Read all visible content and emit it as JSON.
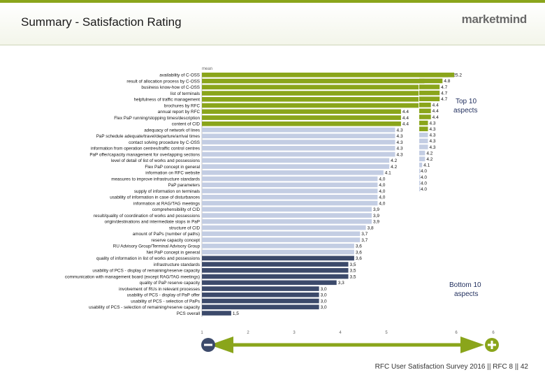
{
  "header": {
    "title": "Summary - Satisfaction Rating",
    "brand": "marketmind"
  },
  "footer": {
    "text": "RFC User Satisfaction Survey 2016 || RFC 8 || 42"
  },
  "chart_data": {
    "type": "bar",
    "orientation": "horizontal",
    "title": "Summary - Satisfaction Rating",
    "series_label": "mean",
    "xlim": [
      1,
      6
    ],
    "xticks": [
      "1",
      "2",
      "3",
      "4",
      "5",
      "6",
      "6"
    ],
    "categories": [
      "availability of C-OSS",
      "result of allocation process by C-OSS",
      "business know-how of C-OSS",
      "list of terminals",
      "helpfulness of traffic management",
      "brochures by RFC",
      "annual report by RFC",
      "Flex PaP running/stopping times/description",
      "content of CID",
      "adequacy of network of lines",
      "PaP schedule adequate/travel/departure/arrival times",
      "contact solving procedure by C-OSS",
      "information from operation centres/traffic control centres",
      "PaP offer/capacity management for overlapping sections",
      "level of detail of list of works and possessions",
      "Flex PaP concept in general",
      "information on RFC website",
      "measures to improve infrastructure standards",
      "PaP parameters",
      "supply of information on terminals",
      "usability of information in case of disturbances",
      "information at RAG/TAG meetings",
      "comprehensibility of CID",
      "result/quality of coordination of works and possessions",
      "origin/destinations and intermediate stops in PaP",
      "structure of CID",
      "amount of PaPs (number of paths)",
      "reserve capacity concept",
      "RU Advisory Group/Terminal Advisory Group",
      "Net PaP concept in general",
      "quality of information in list of works and possessions",
      "infrastructure standards",
      "usability of PCS - display of remaining/reserve capacity",
      "communication with management board (except RAG/TAG meetings)",
      "quality of PaP reserve capacity",
      "involvement of RUs in relevant processes",
      "usability of PCS - display of PaP offer",
      "usability of PCS - selection of PaPs",
      "usability of PCS - selection of remaining/reserve capacity",
      "PCS overall"
    ],
    "values": [
      5.2,
      4.8,
      4.7,
      4.7,
      4.7,
      4.7,
      4.4,
      4.4,
      4.4,
      4.3,
      4.3,
      4.3,
      4.3,
      4.3,
      4.2,
      4.2,
      4.1,
      4.0,
      4.0,
      4.0,
      4.0,
      4.0,
      3.9,
      3.9,
      3.9,
      3.8,
      3.7,
      3.7,
      3.6,
      3.6,
      3.6,
      3.5,
      3.5,
      3.5,
      3.3,
      3.0,
      3.0,
      3.0,
      3.0,
      1.5
    ],
    "value_labels": [
      "5.2",
      "4.8",
      "4.7",
      "4.7",
      "4.7",
      "4.7",
      "4.4",
      "4.4",
      "4.4",
      "4.3",
      "4.3",
      "4.3",
      "4.3",
      "4.3",
      "4.2",
      "4.2",
      "4.1",
      "4,0",
      "4,0",
      "4,0",
      "4,0",
      "4,0",
      "3,9",
      "3,9",
      "3,9",
      "3,8",
      "3,7",
      "3,7",
      "3,6",
      "3,6",
      "3,6",
      "3,5",
      "3,5",
      "3,5",
      "3,3",
      "3,0",
      "3,0",
      "3,0",
      "3,0",
      "1,5"
    ],
    "groups": [
      "top",
      "top",
      "top",
      "top",
      "top",
      "top",
      "top",
      "top",
      "top",
      "mid",
      "mid",
      "mid",
      "mid",
      "mid",
      "mid",
      "mid",
      "mid",
      "mid",
      "mid",
      "mid",
      "mid",
      "mid",
      "mid",
      "mid",
      "mid",
      "mid",
      "mid",
      "mid",
      "mid",
      "mid",
      "bottom",
      "bottom",
      "bottom",
      "bottom",
      "bottom",
      "bottom",
      "bottom",
      "bottom",
      "bottom",
      "bottom"
    ],
    "mini_values": [
      5.2,
      4.8,
      4.7,
      4.7,
      4.7,
      4.4,
      4.4,
      4.4,
      4.3,
      4.3,
      4.3,
      4.3,
      4.3,
      4.2,
      4.2,
      4.1,
      4.0,
      4.0,
      4.0,
      4.0
    ],
    "mini_labels": [
      "5.2",
      "4.8",
      "4.7",
      "4.7",
      "4.7",
      "4.4",
      "4.4",
      "4.4",
      "4.3",
      "4.3",
      "4.3",
      "4.3",
      "4.3",
      "4.2",
      "4.2",
      "4.1",
      "4.0",
      "4.0",
      "4.0",
      "4.0"
    ],
    "annotations": {
      "top": "Top 10 aspects",
      "bottom": "Bottom 10 aspects",
      "minus": "−",
      "plus": "+"
    },
    "colors": {
      "top": "#8aa51b",
      "mid": "#c3cde3",
      "bottom": "#3c4a6b",
      "arrow": "#8aa51b",
      "minus_badge": "#3c4a6b",
      "plus_badge": "#8aa51b"
    }
  }
}
